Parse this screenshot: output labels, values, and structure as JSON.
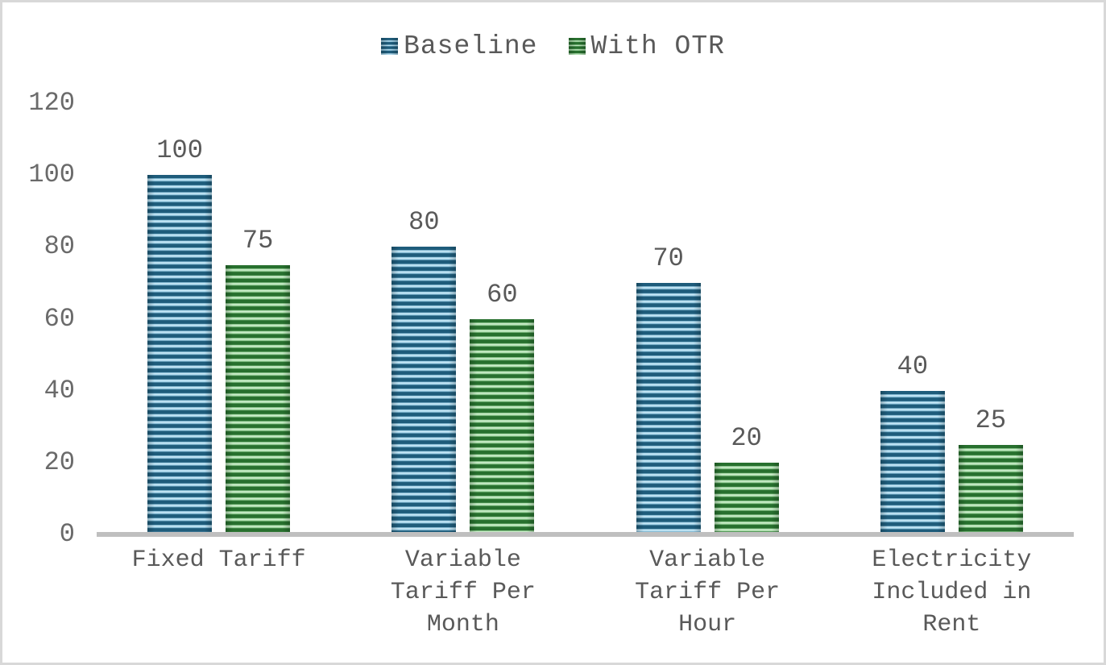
{
  "chart_data": {
    "type": "bar",
    "categories": [
      "Fixed Tariff",
      "Variable Tariff Per Month",
      "Variable Tariff Per Hour",
      "Electricity Included in Rent"
    ],
    "category_lines": [
      [
        "Fixed Tariff"
      ],
      [
        "Variable",
        "Tariff Per",
        "Month"
      ],
      [
        "Variable",
        "Tariff Per",
        "Hour"
      ],
      [
        "Electricity",
        "Included in",
        "Rent"
      ]
    ],
    "series": [
      {
        "name": "Baseline",
        "values": [
          100,
          80,
          70,
          40
        ],
        "color_dark": "#1e5c7b",
        "color_light": "#9dd0e8",
        "color_lighter": "#cdeaf7"
      },
      {
        "name": "With OTR",
        "values": [
          75,
          60,
          20,
          25
        ],
        "color_dark": "#27702e",
        "color_light": "#a4dba4",
        "color_lighter": "#d2efd2"
      }
    ],
    "title": "",
    "xlabel": "",
    "ylabel": "",
    "ylim": [
      0,
      120
    ],
    "yticks": [
      0,
      20,
      40,
      60,
      80,
      100,
      120
    ],
    "data_labels_shown": true,
    "grid": false,
    "legend_position": "top",
    "axis_color": "#bfbfbf",
    "text_color": "#595959",
    "frame_border_color": "#d8d8d8"
  }
}
